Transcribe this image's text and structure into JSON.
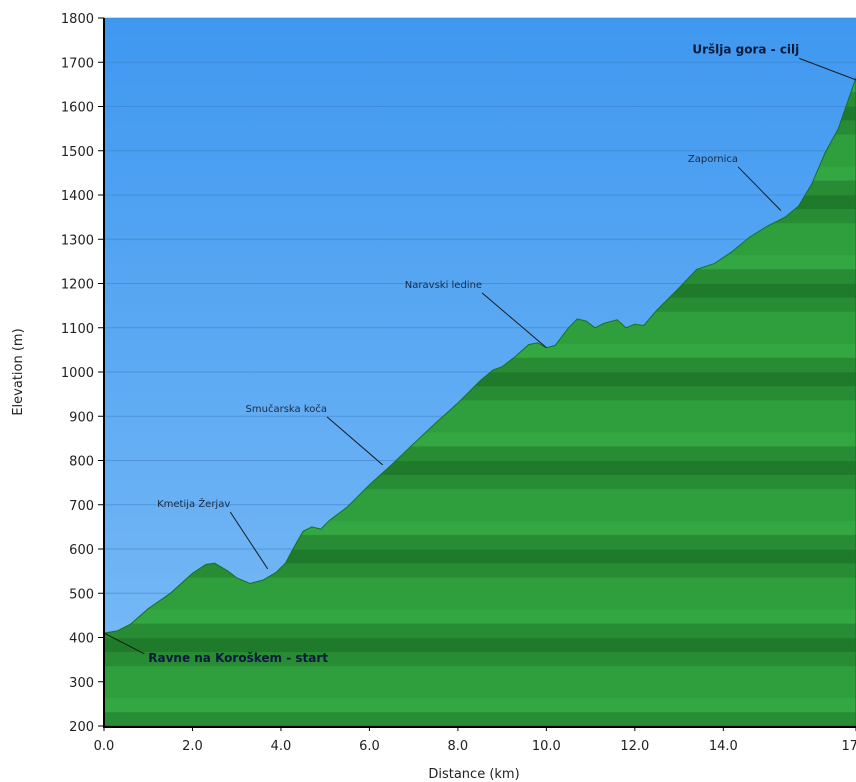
{
  "chart_data": {
    "type": "area",
    "xlabel": "Distance  (km)",
    "ylabel": "Elevation (m)",
    "xlim": [
      0,
      17.0
    ],
    "ylim": [
      200,
      1800
    ],
    "x_ticks": [
      {
        "value": 0,
        "label": "0.0"
      },
      {
        "value": 2,
        "label": "2.0"
      },
      {
        "value": 4,
        "label": "4.0"
      },
      {
        "value": 6,
        "label": "6.0"
      },
      {
        "value": 8,
        "label": "8.0"
      },
      {
        "value": 10,
        "label": "10.0"
      },
      {
        "value": 12,
        "label": "12.0"
      },
      {
        "value": 14,
        "label": "14.0"
      },
      {
        "value": 17,
        "label": "17.0"
      }
    ],
    "y_ticks": [
      {
        "value": 200,
        "label": "200"
      },
      {
        "value": 300,
        "label": "300"
      },
      {
        "value": 400,
        "label": "400"
      },
      {
        "value": 500,
        "label": "500"
      },
      {
        "value": 600,
        "label": "600"
      },
      {
        "value": 700,
        "label": "700"
      },
      {
        "value": 800,
        "label": "800"
      },
      {
        "value": 900,
        "label": "900"
      },
      {
        "value": 1000,
        "label": "1000"
      },
      {
        "value": 1100,
        "label": "1100"
      },
      {
        "value": 1200,
        "label": "1200"
      },
      {
        "value": 1300,
        "label": "1300"
      },
      {
        "value": 1400,
        "label": "1400"
      },
      {
        "value": 1500,
        "label": "1500"
      },
      {
        "value": 1600,
        "label": "1600"
      },
      {
        "value": 1700,
        "label": "1700"
      },
      {
        "value": 1800,
        "label": "1800"
      }
    ],
    "grid": true,
    "colors": {
      "sky": "#4fa3f2",
      "fill": "#2c9a3c",
      "fill_dark": "#1b6e26",
      "axis": "#000000"
    },
    "profile": [
      {
        "x": 0.0,
        "y": 410
      },
      {
        "x": 0.3,
        "y": 415
      },
      {
        "x": 0.6,
        "y": 430
      },
      {
        "x": 1.0,
        "y": 465
      },
      {
        "x": 1.5,
        "y": 500
      },
      {
        "x": 2.0,
        "y": 545
      },
      {
        "x": 2.3,
        "y": 565
      },
      {
        "x": 2.5,
        "y": 568
      },
      {
        "x": 2.8,
        "y": 550
      },
      {
        "x": 3.0,
        "y": 535
      },
      {
        "x": 3.3,
        "y": 522
      },
      {
        "x": 3.6,
        "y": 530
      },
      {
        "x": 3.9,
        "y": 548
      },
      {
        "x": 4.1,
        "y": 568
      },
      {
        "x": 4.3,
        "y": 605
      },
      {
        "x": 4.5,
        "y": 640
      },
      {
        "x": 4.7,
        "y": 650
      },
      {
        "x": 4.9,
        "y": 645
      },
      {
        "x": 5.1,
        "y": 665
      },
      {
        "x": 5.5,
        "y": 695
      },
      {
        "x": 6.0,
        "y": 745
      },
      {
        "x": 6.5,
        "y": 790
      },
      {
        "x": 7.0,
        "y": 838
      },
      {
        "x": 7.5,
        "y": 885
      },
      {
        "x": 8.0,
        "y": 930
      },
      {
        "x": 8.5,
        "y": 980
      },
      {
        "x": 8.8,
        "y": 1005
      },
      {
        "x": 9.0,
        "y": 1012
      },
      {
        "x": 9.3,
        "y": 1035
      },
      {
        "x": 9.6,
        "y": 1062
      },
      {
        "x": 9.8,
        "y": 1066
      },
      {
        "x": 10.0,
        "y": 1055
      },
      {
        "x": 10.2,
        "y": 1060
      },
      {
        "x": 10.5,
        "y": 1100
      },
      {
        "x": 10.7,
        "y": 1120
      },
      {
        "x": 10.9,
        "y": 1115
      },
      {
        "x": 11.1,
        "y": 1100
      },
      {
        "x": 11.3,
        "y": 1110
      },
      {
        "x": 11.6,
        "y": 1118
      },
      {
        "x": 11.8,
        "y": 1100
      },
      {
        "x": 12.0,
        "y": 1108
      },
      {
        "x": 12.2,
        "y": 1105
      },
      {
        "x": 12.5,
        "y": 1140
      },
      {
        "x": 13.0,
        "y": 1190
      },
      {
        "x": 13.4,
        "y": 1232
      },
      {
        "x": 13.8,
        "y": 1245
      },
      {
        "x": 14.2,
        "y": 1272
      },
      {
        "x": 14.6,
        "y": 1305
      },
      {
        "x": 15.0,
        "y": 1330
      },
      {
        "x": 15.4,
        "y": 1350
      },
      {
        "x": 15.7,
        "y": 1375
      },
      {
        "x": 16.0,
        "y": 1425
      },
      {
        "x": 16.3,
        "y": 1495
      },
      {
        "x": 16.6,
        "y": 1550
      },
      {
        "x": 17.0,
        "y": 1665
      }
    ],
    "annotations": [
      {
        "text": "Ravne na Koroškem - start",
        "bold": true,
        "at": {
          "x": 0.0,
          "y": 410
        },
        "label": {
          "x": 1.0,
          "y": 345
        }
      },
      {
        "text": "Kmetija Žerjav",
        "bold": false,
        "at": {
          "x": 3.7,
          "y": 555
        },
        "label": {
          "x": 1.2,
          "y": 695
        }
      },
      {
        "text": "Smučarska koča",
        "bold": false,
        "at": {
          "x": 6.3,
          "y": 790
        },
        "label": {
          "x": 3.2,
          "y": 910
        }
      },
      {
        "text": "Naravski ledine",
        "bold": false,
        "at": {
          "x": 10.0,
          "y": 1055
        },
        "label": {
          "x": 6.8,
          "y": 1190
        }
      },
      {
        "text": "Zapornica",
        "bold": false,
        "at": {
          "x": 15.3,
          "y": 1365
        },
        "label": {
          "x": 13.2,
          "y": 1475
        }
      },
      {
        "text": "Uršlja gora - cilj",
        "bold": true,
        "at": {
          "x": 17.0,
          "y": 1660
        },
        "label": {
          "x": 13.3,
          "y": 1720
        }
      }
    ]
  }
}
